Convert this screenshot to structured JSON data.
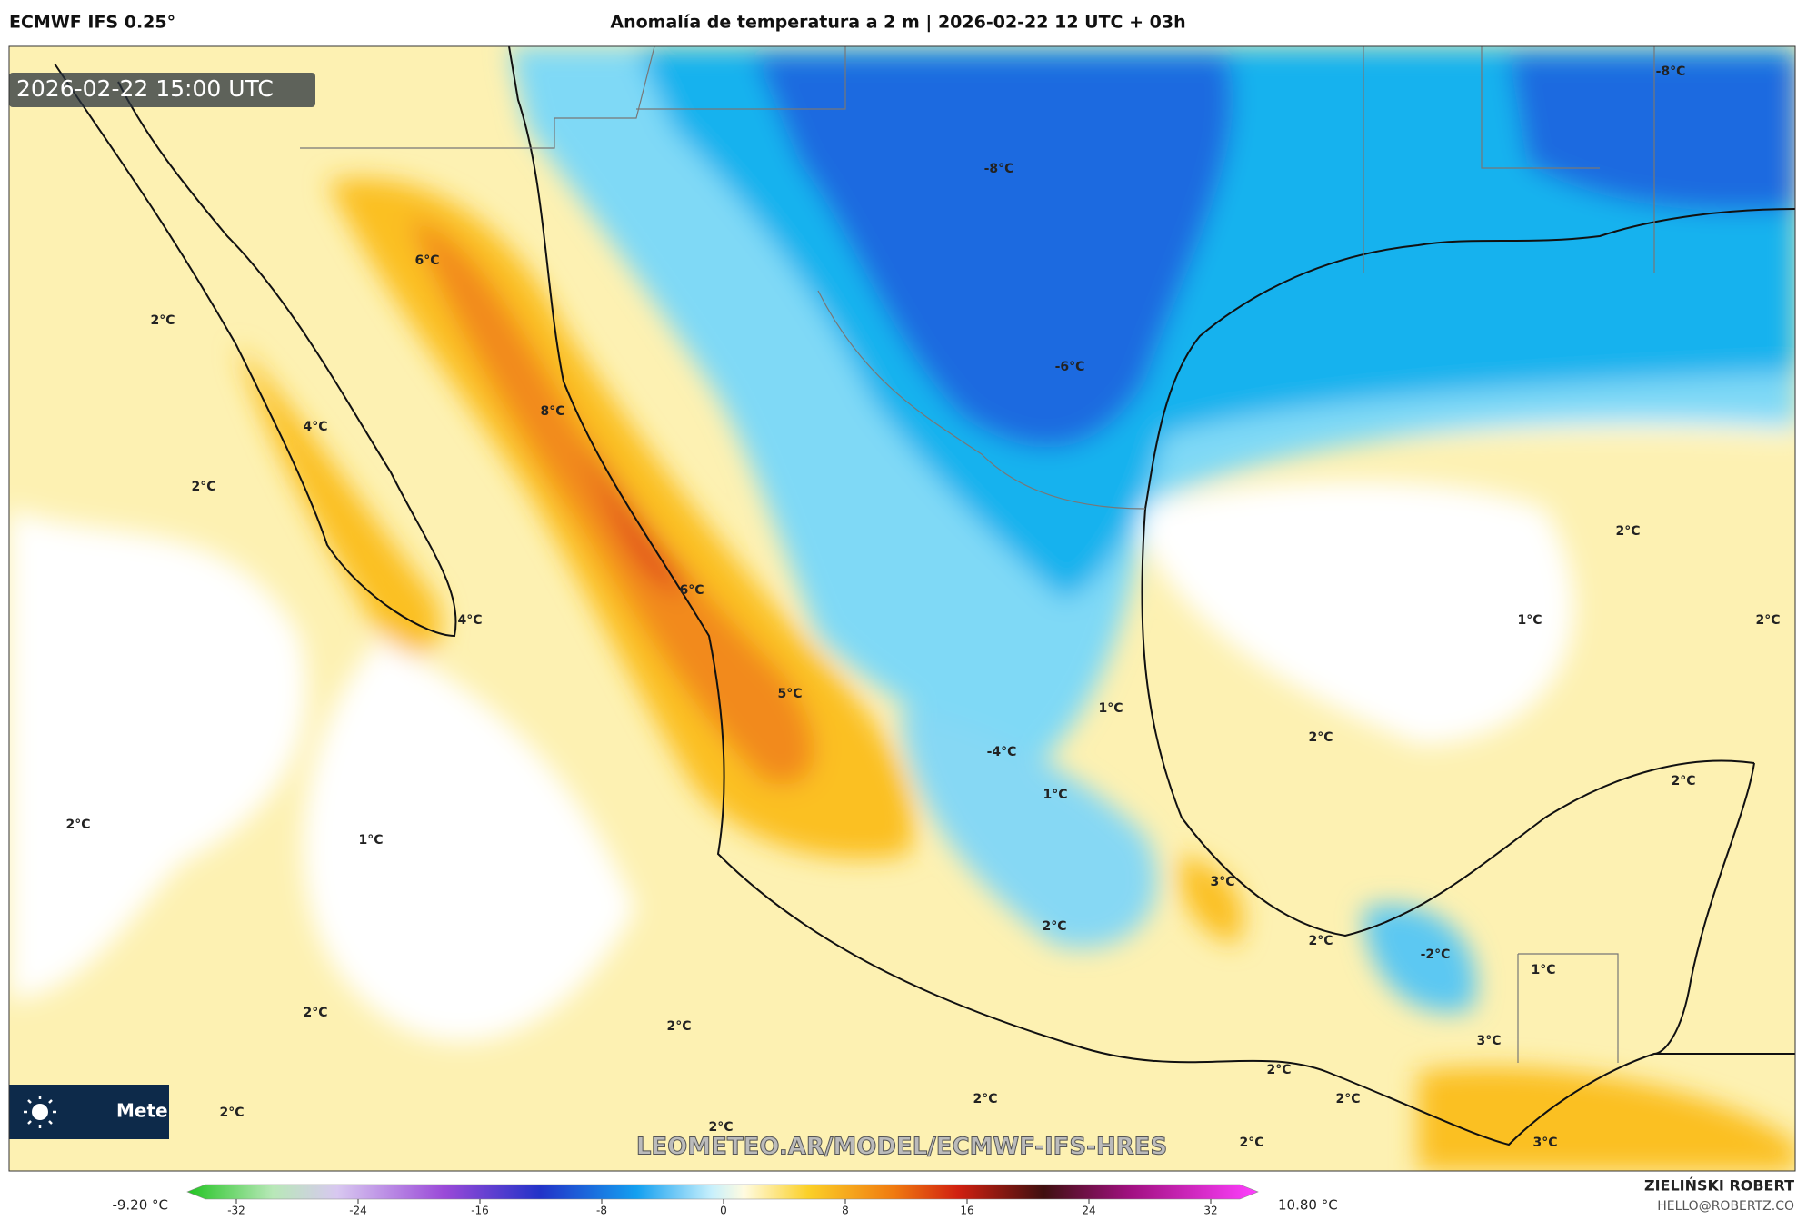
{
  "header": {
    "model": "ECMWF IFS 0.25°",
    "title": "Anomalía de temperatura a 2 m | 2026-02-22 12 UTC + 03h"
  },
  "map": {
    "timestamp": "2026-02-22 15:00 UTC",
    "labels": [
      "-8°C",
      "-8°C",
      "6°C",
      "2°C",
      "-6°C",
      "8°C",
      "4°C",
      "2°C",
      "2°C",
      "6°C",
      "4°C",
      "1°C",
      "2°C",
      "5°C",
      "1°C",
      "2°C",
      "-4°C",
      "2°C",
      "1°C",
      "2°C",
      "1°C",
      "3°C",
      "2°C",
      "2°C",
      "-2°C",
      "1°C",
      "2°C",
      "2°C",
      "3°C",
      "2°C",
      "2°C",
      "2°C",
      "2°C",
      "3°C",
      "2°C",
      "2°C"
    ],
    "watermark": "LEOMETEO.AR/MODEL/ECMWF-IFS-HRES",
    "logo": "Mete"
  },
  "colorbar": {
    "min_label": "-9.20 °C",
    "max_label": "10.80 °C",
    "lim": [
      -32,
      32
    ],
    "ticks": [
      -32,
      -24,
      -16,
      -8,
      0,
      8,
      16,
      24,
      32
    ]
  },
  "footer": {
    "author": "ZIELIŃSKI ROBERT",
    "email": "HELLO@ROBERTZ.CO"
  }
}
